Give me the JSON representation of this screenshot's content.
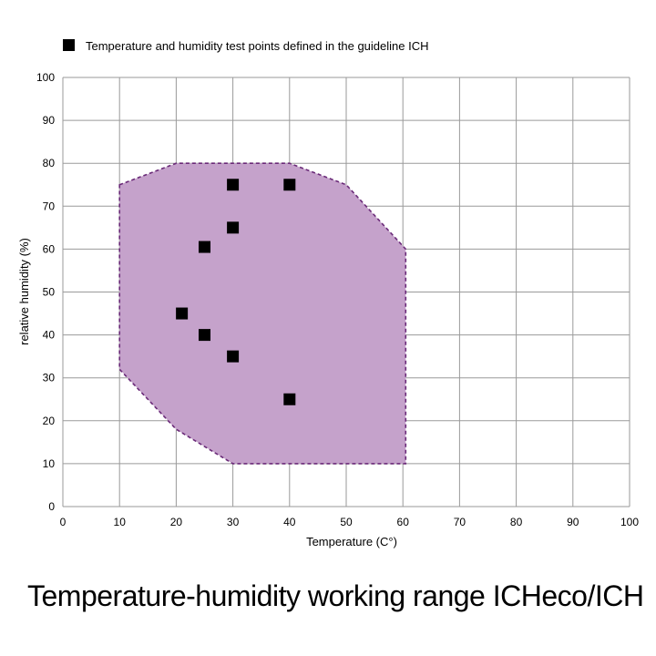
{
  "caption": "Temperature-humidity working range ICHeco/ICH",
  "chart_data": {
    "type": "scatter",
    "xlabel": "Temperature (C°)",
    "ylabel": "relative humidity (%)",
    "xlim": [
      0,
      100
    ],
    "ylim": [
      0,
      100
    ],
    "xticks": [
      0,
      10,
      20,
      30,
      40,
      50,
      60,
      70,
      80,
      90,
      100
    ],
    "yticks": [
      0,
      10,
      20,
      30,
      40,
      50,
      60,
      70,
      80,
      90,
      100
    ],
    "grid": true,
    "legend": {
      "placement": "top-left",
      "entries": [
        "Temperature and humidity test points defined in the guideline ICH"
      ]
    },
    "working_range": {
      "color": "#c5a2cb",
      "border_color": "#6a2a78",
      "points": [
        [
          10,
          75
        ],
        [
          20,
          80
        ],
        [
          40,
          80
        ],
        [
          50,
          75
        ],
        [
          60.5,
          60
        ],
        [
          60.5,
          10
        ],
        [
          30,
          10
        ],
        [
          20,
          18
        ],
        [
          10,
          32
        ]
      ]
    },
    "series": [
      {
        "name": "Temperature and humidity test points defined in the guideline ICH",
        "color": "#000000",
        "points": [
          [
            30,
            75
          ],
          [
            40,
            75
          ],
          [
            30,
            65
          ],
          [
            25,
            60.5
          ],
          [
            21,
            45
          ],
          [
            25,
            40
          ],
          [
            30,
            35
          ],
          [
            40,
            25
          ]
        ]
      }
    ]
  }
}
